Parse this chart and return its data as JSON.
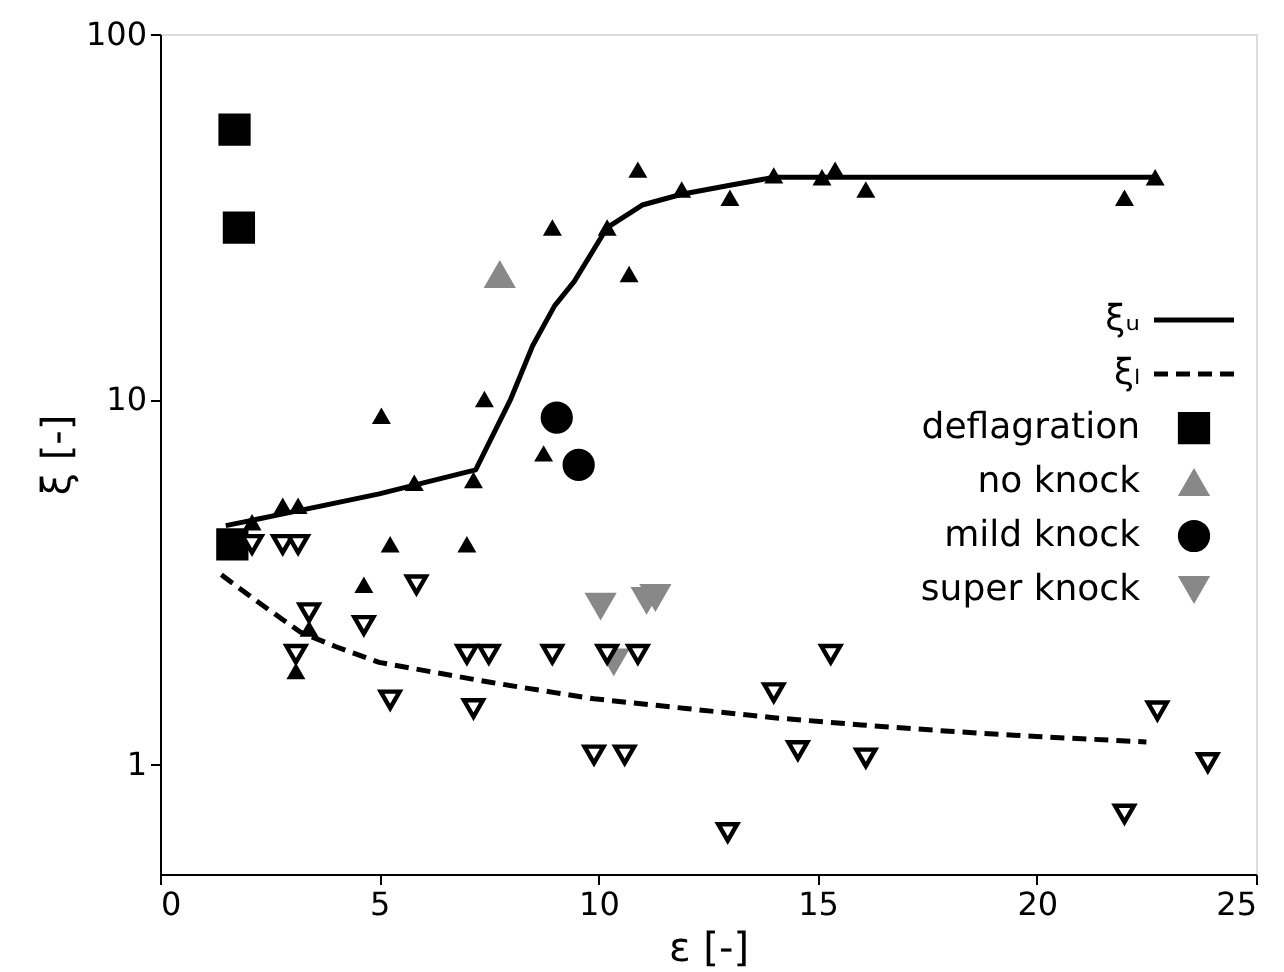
{
  "chart_data": {
    "type": "scatter",
    "xlabel": "ε [-]",
    "ylabel": "ξ [-]",
    "log": "y",
    "xlim": [
      0,
      25
    ],
    "ylim": [
      0.5,
      100
    ],
    "xticks": [
      0,
      5,
      10,
      15,
      20,
      25
    ],
    "yticks": [
      1,
      10,
      100
    ],
    "grid": false,
    "legend": "right",
    "series": [
      {
        "name": "ξᵤ",
        "type": "line",
        "line_style": "solid",
        "color": "#000000",
        "x": [
          1.5,
          3,
          5,
          7.2,
          8,
          8.5,
          9,
          9.45,
          10.2,
          11,
          11.9,
          13,
          14,
          15,
          16,
          22.7
        ],
        "values": [
          4.5,
          4.9,
          5.5,
          6.4,
          10,
          14,
          18,
          21,
          29.5,
          34,
          36.4,
          38.5,
          40.5,
          40.5,
          40.5,
          40.5
        ]
      },
      {
        "name": "ξₗ",
        "type": "line",
        "line_style": "dashed",
        "color": "#000000",
        "x": [
          1.4,
          2.2,
          3.2,
          4,
          5,
          6.3,
          7.6,
          9,
          9.9,
          12,
          14,
          16,
          18,
          20,
          22.5
        ],
        "values": [
          3.3,
          2.8,
          2.3,
          2.1,
          1.9,
          1.78,
          1.67,
          1.57,
          1.51,
          1.42,
          1.34,
          1.28,
          1.23,
          1.19,
          1.15
        ]
      },
      {
        "name": "deflagration",
        "type": "scatter",
        "marker": "square",
        "color": "#000000",
        "x": [
          1.7,
          1.8,
          1.65
        ],
        "values": [
          54.7,
          29.5,
          4.0
        ]
      },
      {
        "name": "no knock",
        "type": "scatter",
        "marker": "triangle",
        "color": "#888888",
        "x": [
          7.75
        ],
        "values": [
          22
        ]
      },
      {
        "name": "mild knock",
        "type": "scatter",
        "marker": "circle",
        "color": "#000000",
        "x": [
          9.05,
          9.55
        ],
        "values": [
          8.9,
          6.6
        ]
      },
      {
        "name": "super knock",
        "type": "scatter",
        "marker": "triangle-down",
        "color": "#888888",
        "x": [
          10.05,
          11.1,
          11.3,
          10.35
        ],
        "values": [
          2.7,
          2.8,
          2.85,
          1.9
        ]
      },
      {
        "marker": "triangle",
        "color": "#000000",
        "x": [
          2.1,
          2.8,
          3.15,
          5.8,
          7.15,
          5.25,
          7.0,
          4.65,
          3.4,
          3.1,
          5.05,
          7.4,
          8.75,
          8.95,
          10.2,
          10.7,
          10.9,
          11.9,
          13.0,
          14.0,
          15.1,
          15.4,
          16.1,
          22.0,
          22.7
        ],
        "values": [
          4.6,
          5.1,
          5.1,
          5.9,
          6.0,
          4.0,
          4.0,
          3.1,
          2.35,
          1.8,
          9.0,
          10.0,
          7.1,
          29.5,
          29.5,
          22,
          42.5,
          37.5,
          35.6,
          41,
          40.5,
          42.5,
          37.5,
          35.6,
          40.5
        ]
      },
      {
        "marker": "triangle-down",
        "color": "#000000",
        "x": [
          2.1,
          2.8,
          3.15,
          5.85,
          4.65,
          3.4,
          3.1,
          7.0,
          7.5,
          8.95,
          5.25,
          7.15,
          9.9,
          10.6,
          10.9,
          10.2,
          14.0,
          15.3,
          14.55,
          16.1,
          12.95,
          22.0,
          22.75,
          23.9
        ],
        "values": [
          4.0,
          4.0,
          4.0,
          3.1,
          2.4,
          2.6,
          2.0,
          2.0,
          2.0,
          2.0,
          1.5,
          1.42,
          1.06,
          1.06,
          2.0,
          2.0,
          1.57,
          2.0,
          1.09,
          1.04,
          0.65,
          0.73,
          1.4,
          1.01
        ]
      }
    ]
  }
}
